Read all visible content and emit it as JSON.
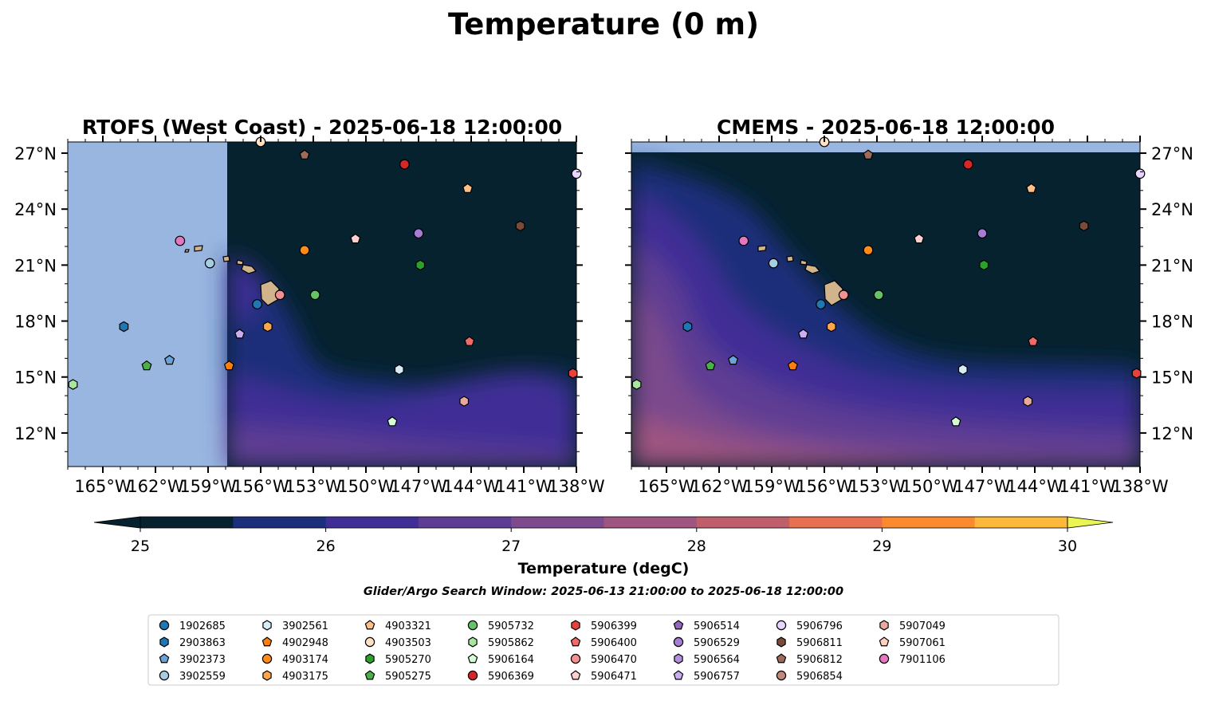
{
  "figure": {
    "suptitle": "Temperature (0 m)",
    "panels": [
      {
        "title": "RTOFS (West Coast) - 2025-06-18 12:00:00"
      },
      {
        "title": "CMEMS - 2025-06-18 12:00:00"
      }
    ],
    "colorbar": {
      "label": "Temperature (degC)",
      "ticks": [
        "25",
        "26",
        "27",
        "28",
        "29",
        "30"
      ],
      "colors": [
        "#06222e",
        "#1b2f7a",
        "#402e96",
        "#5f3c93",
        "#7c4a8d",
        "#9e5580",
        "#bf5f6c",
        "#e6704f",
        "#fb8a2e",
        "#fcb83b",
        "#eaf553"
      ],
      "under_color": "#06222e",
      "over_color": "#eaf553",
      "land_color": "#d2b48c",
      "nodata_color": "#98b6e0"
    },
    "search_window": "Glider/Argo Search Window: 2025-06-13 21:00:00 to 2025-06-18 12:00:00",
    "xticks": [
      "165°W",
      "162°W",
      "159°W",
      "156°W",
      "153°W",
      "150°W",
      "147°W",
      "144°W",
      "141°W",
      "138°W"
    ],
    "yticks": [
      "27°N",
      "24°N",
      "21°N",
      "18°N",
      "15°N",
      "12°N"
    ]
  },
  "chart_data": {
    "type": "scatter",
    "xlim": [
      -167.0,
      -138.0
    ],
    "ylim": [
      10.2,
      27.6
    ],
    "x_units": "degrees longitude (negative = West)",
    "y_units": "degrees latitude (North)",
    "series": [
      {
        "name": "1902685",
        "marker": "circle",
        "color": "#1f77b4",
        "lon": -156.2,
        "lat": 18.9
      },
      {
        "name": "2903863",
        "marker": "hexagon",
        "color": "#1f77b4",
        "lon": -163.8,
        "lat": 17.7
      },
      {
        "name": "3902373",
        "marker": "pentagon",
        "color": "#6aa3d8",
        "lon": -161.2,
        "lat": 15.9
      },
      {
        "name": "3902559",
        "marker": "circle",
        "color": "#a6cee3",
        "lon": -158.9,
        "lat": 21.1
      },
      {
        "name": "3902561",
        "marker": "hexagon",
        "color": "#d8ecf8",
        "lon": -148.1,
        "lat": 15.4
      },
      {
        "name": "4902948",
        "marker": "pentagon",
        "color": "#ff7f0e",
        "lon": -157.8,
        "lat": 15.6
      },
      {
        "name": "4903174",
        "marker": "circle",
        "color": "#ff8c1a",
        "lon": -153.5,
        "lat": 21.8
      },
      {
        "name": "4903175",
        "marker": "hexagon",
        "color": "#ffa54c",
        "lon": -155.6,
        "lat": 17.7
      },
      {
        "name": "4903321",
        "marker": "pentagon",
        "color": "#fdc086",
        "lon": -144.2,
        "lat": 25.1
      },
      {
        "name": "4903503",
        "marker": "circle",
        "color": "#ffe2c2",
        "lon": -156.0,
        "lat": 27.6
      },
      {
        "name": "5905270",
        "marker": "hexagon",
        "color": "#2ca02c",
        "lon": -146.9,
        "lat": 21.0
      },
      {
        "name": "5905275",
        "marker": "pentagon",
        "color": "#4daf4a",
        "lon": -162.5,
        "lat": 15.6
      },
      {
        "name": "5905732",
        "marker": "circle",
        "color": "#66c266",
        "lon": -152.9,
        "lat": 19.4
      },
      {
        "name": "5905862",
        "marker": "hexagon",
        "color": "#a8e6a0",
        "lon": -166.7,
        "lat": 14.6
      },
      {
        "name": "5906164",
        "marker": "pentagon",
        "color": "#d4ffd4",
        "lon": -148.5,
        "lat": 12.6
      },
      {
        "name": "5906369",
        "marker": "circle",
        "color": "#d62728",
        "lon": -147.8,
        "lat": 26.4
      },
      {
        "name": "5906399",
        "marker": "hexagon",
        "color": "#e8413c",
        "lon": -138.2,
        "lat": 15.2
      },
      {
        "name": "5906400",
        "marker": "pentagon",
        "color": "#f06a6a",
        "lon": -144.1,
        "lat": 16.9
      },
      {
        "name": "5906470",
        "marker": "circle",
        "color": "#f49090",
        "lon": -154.9,
        "lat": 19.4
      },
      {
        "name": "5906471",
        "marker": "pentagon",
        "color": "#ffd0d0",
        "lon": -150.6,
        "lat": 22.4
      },
      {
        "name": "5906514",
        "marker": "pentagon",
        "color": "#9467bd",
        "lon": null,
        "lat": null
      },
      {
        "name": "5906529",
        "marker": "circle",
        "color": "#a77cd4",
        "lon": -147.0,
        "lat": 22.7
      },
      {
        "name": "5906564",
        "marker": "hexagon",
        "color": "#b48fdd",
        "lon": null,
        "lat": null
      },
      {
        "name": "5906757",
        "marker": "pentagon",
        "color": "#c9aef0",
        "lon": -157.2,
        "lat": 17.3
      },
      {
        "name": "5906796",
        "marker": "circle",
        "color": "#e6d6ff",
        "lon": -138.0,
        "lat": 25.9
      },
      {
        "name": "5906811",
        "marker": "hexagon",
        "color": "#7a4a3a",
        "lon": -141.2,
        "lat": 23.1
      },
      {
        "name": "5906812",
        "marker": "pentagon",
        "color": "#9c6b5a",
        "lon": -153.5,
        "lat": 26.9
      },
      {
        "name": "5906854",
        "marker": "circle",
        "color": "#c08a7a",
        "lon": null,
        "lat": null
      },
      {
        "name": "5907049",
        "marker": "hexagon",
        "color": "#e8aa9c",
        "lon": -144.4,
        "lat": 13.7
      },
      {
        "name": "5907061",
        "marker": "pentagon",
        "color": "#ffcfc0",
        "lon": null,
        "lat": null
      },
      {
        "name": "7901106",
        "marker": "circle",
        "color": "#e377c2",
        "lon": -160.6,
        "lat": 22.3
      }
    ]
  }
}
